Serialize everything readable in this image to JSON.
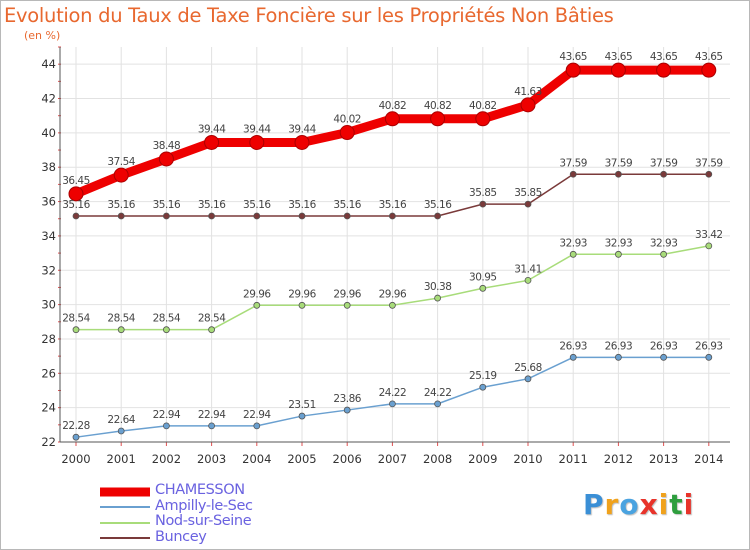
{
  "title": "Evolution du Taux de Taxe Foncière sur les Propriétés Non Bâties",
  "subtitle": "(en %)",
  "logo": {
    "letters": [
      "P",
      "r",
      "o",
      "x",
      "i",
      "t",
      "i"
    ],
    "colors": [
      "#3a8fd6",
      "#f0a21c",
      "#4aa3e0",
      "#e8332a",
      "#f0a21c",
      "#2e9e3e",
      "#e8332a"
    ]
  },
  "chart_data": {
    "type": "line",
    "x": [
      "2000",
      "2001",
      "2002",
      "2003",
      "2004",
      "2005",
      "2006",
      "2007",
      "2008",
      "2009",
      "2010",
      "2011",
      "2012",
      "2013",
      "2014"
    ],
    "ylim": [
      22,
      45
    ],
    "yticks": [
      "22",
      "24",
      "26",
      "28",
      "30",
      "32",
      "34",
      "36",
      "38",
      "40",
      "42",
      "44"
    ],
    "grid": true,
    "legend_position": "bottom-left",
    "series": [
      {
        "name": "CHAMESSON",
        "color": "#ee0000",
        "width": 9,
        "marker": 7,
        "values": [
          36.45,
          37.54,
          38.48,
          39.44,
          39.44,
          39.44,
          40.02,
          40.82,
          40.82,
          40.82,
          41.63,
          43.65,
          43.65,
          43.65,
          43.65
        ],
        "labels": [
          "36.45",
          "37.54",
          "38.48",
          "39.44",
          "39.44",
          "39.44",
          "40.02",
          "40.82",
          "40.82",
          "40.82",
          "41.63",
          "43.65",
          "43.65",
          "43.65",
          "43.65"
        ]
      },
      {
        "name": "Ampilly-le-Sec",
        "color": "#6aa0d0",
        "width": 1.5,
        "marker": 3,
        "values": [
          22.28,
          22.64,
          22.94,
          22.94,
          22.94,
          23.51,
          23.86,
          24.22,
          24.22,
          25.19,
          25.68,
          26.93,
          26.93,
          26.93,
          26.93
        ],
        "labels": [
          "22.28",
          "22.64",
          "22.94",
          "22.94",
          "22.94",
          "23.51",
          "23.86",
          "24.22",
          "24.22",
          "25.19",
          "25.68",
          "26.93",
          "26.93",
          "26.93",
          "26.93"
        ]
      },
      {
        "name": "Nod-sur-Seine",
        "color": "#a8dc7a",
        "width": 1.5,
        "marker": 3,
        "values": [
          28.54,
          28.54,
          28.54,
          28.54,
          29.96,
          29.96,
          29.96,
          29.96,
          30.38,
          30.95,
          31.41,
          32.93,
          32.93,
          32.93,
          33.42
        ],
        "labels": [
          "28.54",
          "28.54",
          "28.54",
          "28.54",
          "29.96",
          "29.96",
          "29.96",
          "29.96",
          "30.38",
          "30.95",
          "31.41",
          "32.93",
          "32.93",
          "32.93",
          "33.42"
        ]
      },
      {
        "name": "Buncey",
        "color": "#7a3a3a",
        "width": 1.5,
        "marker": 3,
        "values": [
          35.16,
          35.16,
          35.16,
          35.16,
          35.16,
          35.16,
          35.16,
          35.16,
          35.16,
          35.85,
          35.85,
          37.59,
          37.59,
          37.59,
          37.59
        ],
        "labels": [
          "35.16",
          "35.16",
          "35.16",
          "35.16",
          "35.16",
          "35.16",
          "35.16",
          "35.16",
          "35.16",
          "35.85",
          "35.85",
          "37.59",
          "37.59",
          "37.59",
          "37.59"
        ]
      }
    ]
  }
}
